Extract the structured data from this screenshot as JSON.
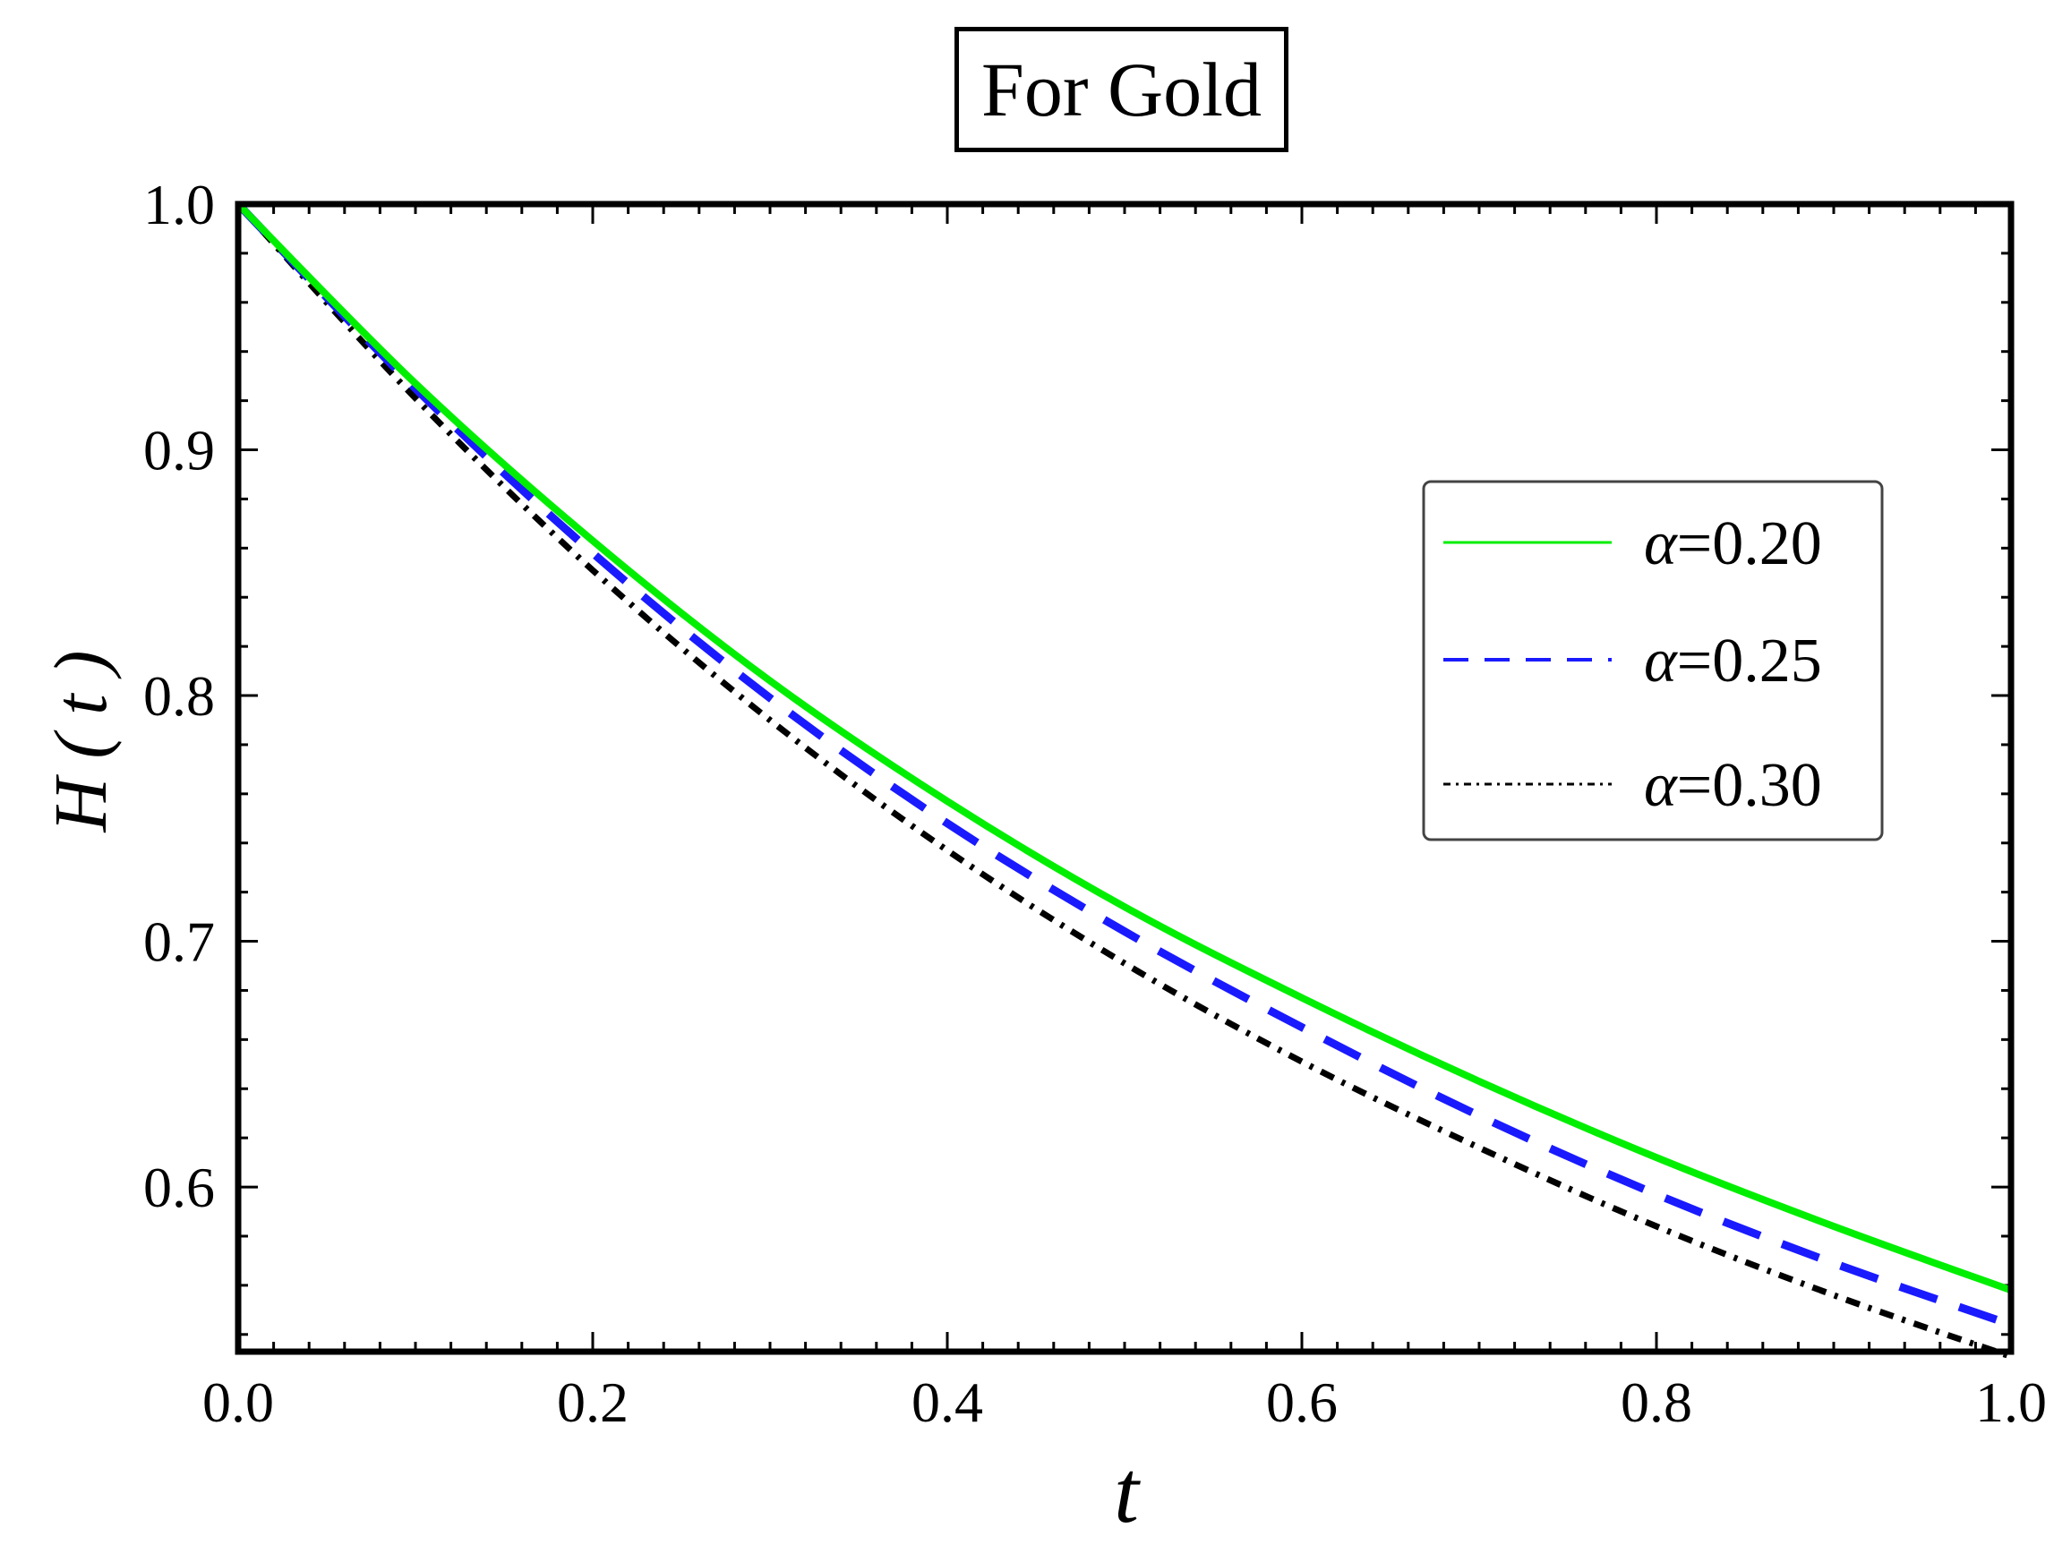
{
  "chart_data": {
    "type": "line",
    "title": "For Gold",
    "xlabel": "t",
    "ylabel": "H ( t )",
    "xlim": [
      0.0,
      1.0
    ],
    "ylim": [
      0.533,
      1.0
    ],
    "x_ticks": [
      "0.0",
      "0.2",
      "0.4",
      "0.6",
      "0.8",
      "1.0"
    ],
    "y_ticks": [
      "0.6",
      "0.7",
      "0.8",
      "0.9",
      "1.0"
    ],
    "legend_position": "top-right",
    "series": [
      {
        "name": "α=0.20",
        "alpha_label": "α",
        "value_label": "=0.20",
        "style": "solid",
        "color": "#00ee00",
        "x": [
          0.0,
          0.1,
          0.2,
          0.3,
          0.4,
          0.5,
          0.6,
          0.7,
          0.8,
          0.9,
          1.0
        ],
        "y": [
          1.0,
          0.927,
          0.863,
          0.806,
          0.757,
          0.714,
          0.677,
          0.643,
          0.612,
          0.584,
          0.558
        ]
      },
      {
        "name": "α=0.25",
        "alpha_label": "α",
        "value_label": "=0.25",
        "style": "dashed",
        "color": "#1a1aff",
        "x": [
          0.0,
          0.1,
          0.2,
          0.3,
          0.4,
          0.5,
          0.6,
          0.7,
          0.8,
          0.9,
          1.0
        ],
        "y": [
          1.0,
          0.925,
          0.858,
          0.799,
          0.748,
          0.704,
          0.665,
          0.629,
          0.597,
          0.569,
          0.544
        ]
      },
      {
        "name": "α=0.30",
        "alpha_label": "α",
        "value_label": "=0.30",
        "style": "dashdot",
        "color": "#000000",
        "x": [
          0.0,
          0.1,
          0.2,
          0.3,
          0.4,
          0.5,
          0.6,
          0.7,
          0.8,
          0.9,
          1.0
        ],
        "y": [
          1.0,
          0.921,
          0.851,
          0.79,
          0.737,
          0.691,
          0.651,
          0.616,
          0.584,
          0.556,
          0.531
        ]
      }
    ]
  }
}
